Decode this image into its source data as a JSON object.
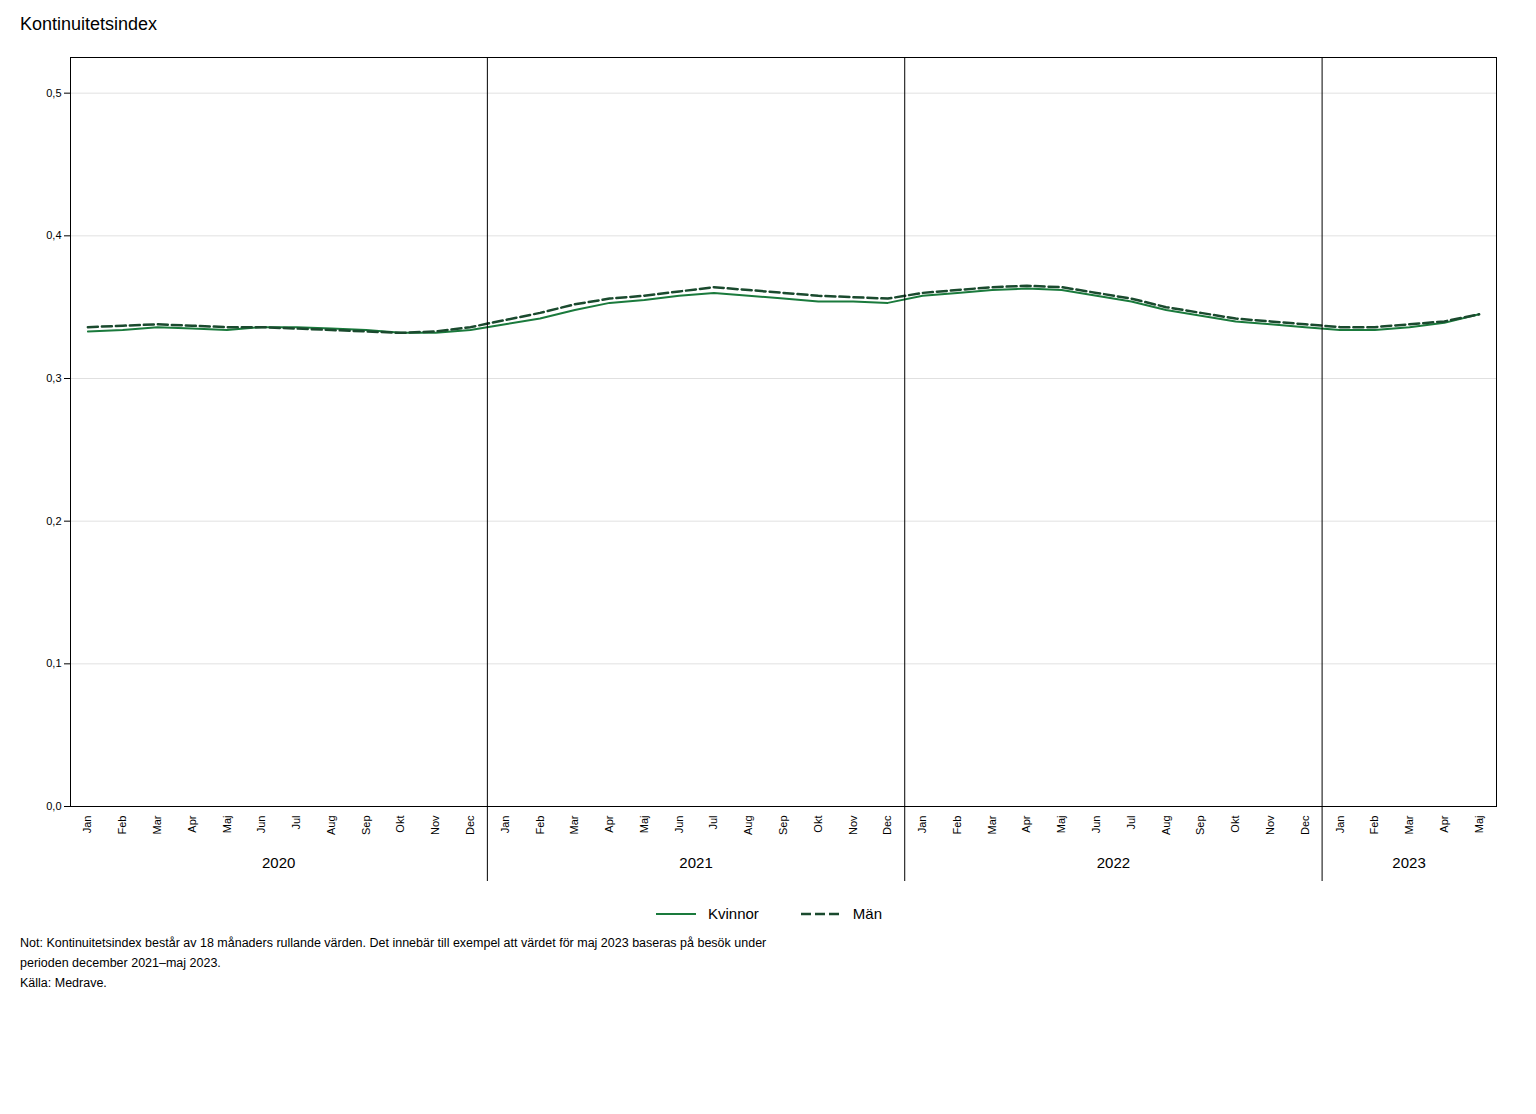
{
  "chart_data": {
    "type": "line",
    "title": "Kontinuitetsindex",
    "categories": [
      "Jan",
      "Feb",
      "Mar",
      "Apr",
      "Maj",
      "Jun",
      "Jul",
      "Aug",
      "Sep",
      "Okt",
      "Nov",
      "Dec",
      "Jan",
      "Feb",
      "Mar",
      "Apr",
      "Maj",
      "Jun",
      "Jul",
      "Aug",
      "Sep",
      "Okt",
      "Nov",
      "Dec",
      "Jan",
      "Feb",
      "Mar",
      "Apr",
      "Maj",
      "Jun",
      "Jul",
      "Aug",
      "Sep",
      "Okt",
      "Nov",
      "Dec",
      "Jan",
      "Feb",
      "Mar",
      "Apr",
      "Maj"
    ],
    "year_labels": [
      "2020",
      "2021",
      "2022",
      "2023"
    ],
    "series": [
      {
        "name": "Kvinnor",
        "color": "#1a7a3c",
        "line_style": "solid",
        "values": [
          0.333,
          0.334,
          0.336,
          0.335,
          0.334,
          0.336,
          0.336,
          0.335,
          0.334,
          0.332,
          0.332,
          0.334,
          0.338,
          0.342,
          0.348,
          0.353,
          0.355,
          0.358,
          0.36,
          0.358,
          0.356,
          0.354,
          0.354,
          0.353,
          0.358,
          0.36,
          0.362,
          0.363,
          0.362,
          0.358,
          0.354,
          0.348,
          0.344,
          0.34,
          0.338,
          0.336,
          0.334,
          0.334,
          0.336,
          0.339,
          0.345
        ]
      },
      {
        "name": "Män",
        "color": "#1a4a2e",
        "line_style": "dashed",
        "values": [
          0.336,
          0.337,
          0.338,
          0.337,
          0.336,
          0.336,
          0.335,
          0.334,
          0.333,
          0.332,
          0.333,
          0.336,
          0.341,
          0.346,
          0.352,
          0.356,
          0.358,
          0.361,
          0.364,
          0.362,
          0.36,
          0.358,
          0.357,
          0.356,
          0.36,
          0.362,
          0.364,
          0.365,
          0.364,
          0.36,
          0.356,
          0.35,
          0.346,
          0.342,
          0.34,
          0.338,
          0.336,
          0.336,
          0.338,
          0.34,
          0.345
        ]
      }
    ],
    "ylim": [
      0.0,
      0.525
    ],
    "yticks": [
      {
        "value": 0.0,
        "label": "0,0"
      },
      {
        "value": 0.1,
        "label": "0,1"
      },
      {
        "value": 0.2,
        "label": "0,2"
      },
      {
        "value": 0.3,
        "label": "0,3"
      },
      {
        "value": 0.4,
        "label": "0,4"
      },
      {
        "value": 0.5,
        "label": "0,5"
      }
    ],
    "grid": true,
    "legend": "bottom",
    "notes": [
      "Not: Kontinuitetsindex består av 18 månaders rullande värden. Det innebär till exempel att värdet för maj 2023 baseras på besök under",
      "perioden december 2021–maj 2023."
    ],
    "source": "Källa: Medrave."
  }
}
